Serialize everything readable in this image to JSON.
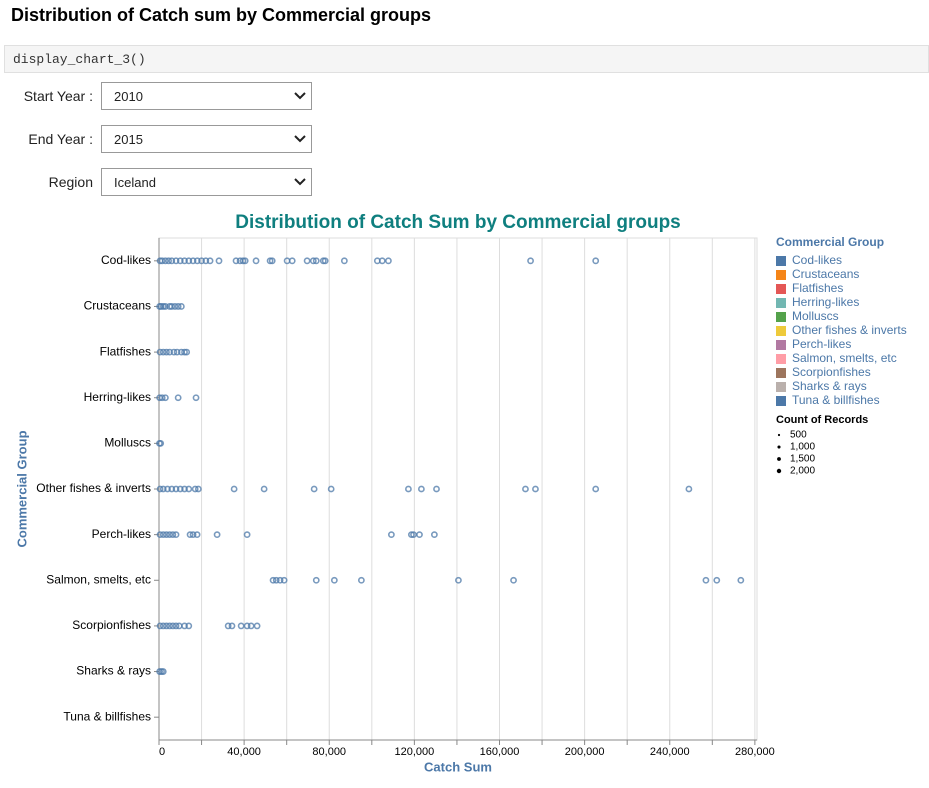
{
  "header": {
    "title": "Distribution of Catch sum by Commercial groups"
  },
  "code_cell": {
    "code": "display_chart_3()"
  },
  "controls": [
    {
      "label": "Start Year :",
      "value": "2010"
    },
    {
      "label": "End Year :",
      "value": "2015"
    },
    {
      "label": "Region",
      "value": "Iceland"
    }
  ],
  "chart_data": {
    "type": "strip",
    "title": "Distribution of Catch Sum by Commercial groups",
    "x_label": "Catch Sum",
    "y_label": "Commercial Group",
    "categories": [
      "Cod-likes",
      "Crustaceans",
      "Flatfishes",
      "Herring-likes",
      "Molluscs",
      "Other fishes & inverts",
      "Perch-likes",
      "Salmon, smelts, etc",
      "Scorpionfishes",
      "Sharks & rays",
      "Tuna & billfishes"
    ],
    "point_color": "#4c78a8",
    "points": [
      [
        500,
        1500,
        3000,
        4500,
        6000,
        8000,
        10000,
        12000,
        14000,
        16000,
        18000,
        20000,
        22000,
        24000,
        28200,
        36200,
        38100,
        39500,
        40500,
        45600,
        52200,
        53200,
        60200,
        62600,
        69600,
        72500,
        73900,
        77200,
        78100,
        87100,
        102600,
        104900,
        107800,
        174600,
        205200
      ],
      [
        300,
        1000,
        2000,
        3000,
        5000,
        6000,
        7500,
        9000,
        10500
      ],
      [
        500,
        2000,
        3500,
        5000,
        7000,
        8500,
        10500,
        12000,
        13000
      ],
      [
        300,
        1500,
        3000,
        9000,
        17400
      ],
      [
        200,
        800
      ],
      [
        500,
        2000,
        4000,
        6000,
        8000,
        10000,
        12000,
        14000,
        17000,
        18500,
        35300,
        49400,
        72900,
        80900,
        117200,
        123300,
        130400,
        172200,
        176900,
        205200,
        249000
      ],
      [
        500,
        2000,
        3500,
        5000,
        6500,
        8000,
        14600,
        16000,
        17900,
        27300,
        41400,
        109200,
        118600,
        119600,
        122400,
        129400
      ],
      [
        53600,
        55100,
        56900,
        58800,
        73900,
        82400,
        95100,
        140700,
        166600,
        257000,
        262100,
        273400
      ],
      [
        500,
        2000,
        3500,
        5000,
        6500,
        8000,
        9500,
        12000,
        14000,
        32500,
        34300,
        38600,
        41400,
        43300,
        46100
      ],
      [
        300,
        1200,
        2000
      ],
      []
    ],
    "xlim": [
      0,
      281000
    ],
    "xticks": [
      {
        "value": 0,
        "label": "0"
      },
      {
        "value": 40000,
        "label": "40,000"
      },
      {
        "value": 80000,
        "label": "80,000"
      },
      {
        "value": 120000,
        "label": "120,000"
      },
      {
        "value": 160000,
        "label": "160,000"
      },
      {
        "value": 200000,
        "label": "200,000"
      },
      {
        "value": 240000,
        "label": "240,000"
      },
      {
        "value": 280000,
        "label": "280,000"
      }
    ],
    "x_minor_ticks": [
      20000,
      60000,
      100000,
      140000,
      180000,
      220000,
      260000
    ],
    "grid": true,
    "legend": {
      "title": "Commercial Group",
      "entries": [
        {
          "name": "Cod-likes",
          "color": "#4c78a8"
        },
        {
          "name": "Crustaceans",
          "color": "#f58518"
        },
        {
          "name": "Flatfishes",
          "color": "#e45756"
        },
        {
          "name": "Herring-likes",
          "color": "#72b7b2"
        },
        {
          "name": "Molluscs",
          "color": "#54a24b"
        },
        {
          "name": "Other fishes & inverts",
          "color": "#eeca3b"
        },
        {
          "name": "Perch-likes",
          "color": "#b279a2"
        },
        {
          "name": "Salmon, smelts, etc",
          "color": "#ff9da6"
        },
        {
          "name": "Scorpionfishes",
          "color": "#9d755d"
        },
        {
          "name": "Sharks & rays",
          "color": "#bab0ac"
        },
        {
          "name": "Tuna & billfishes",
          "color": "#4c78a8"
        }
      ]
    },
    "size_legend": {
      "title": "Count of Records",
      "ticks": [
        500,
        {
          "value": 1000,
          "label": "1,000"
        },
        {
          "value": 1500,
          "label": "1,500"
        },
        {
          "value": 2000,
          "label": "2,000"
        }
      ]
    }
  }
}
